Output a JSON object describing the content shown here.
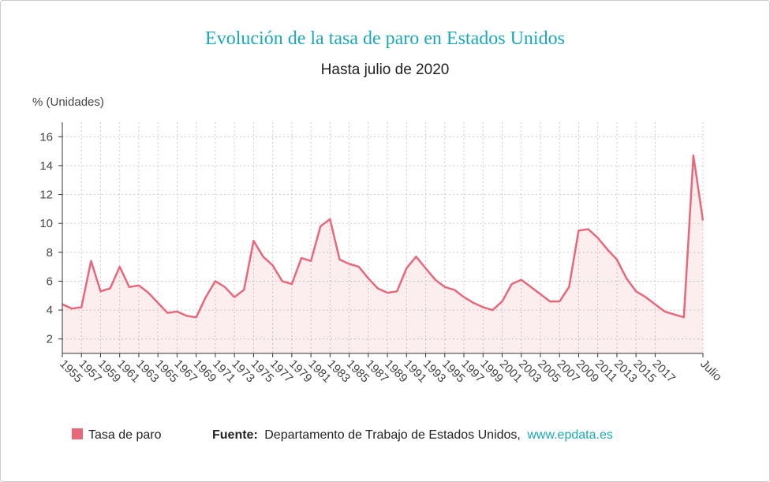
{
  "chart_data": {
    "type": "line",
    "title": "Evolución de la tasa de paro en Estados Unidos",
    "subtitle": "Hasta julio de 2020",
    "y_label": "% (Unidades)",
    "categories": [
      "1955",
      null,
      "1957",
      null,
      "1959",
      null,
      "1961",
      null,
      "1963",
      null,
      "1965",
      null,
      "1967",
      null,
      "1969",
      null,
      "1971",
      null,
      "1973",
      null,
      "1975",
      null,
      "1977",
      null,
      "1979",
      null,
      "1981",
      null,
      "1983",
      null,
      "1985",
      null,
      "1987",
      null,
      "1989",
      null,
      "1991",
      null,
      "1993",
      null,
      "1995",
      null,
      "1997",
      null,
      "1999",
      null,
      "2001",
      null,
      "2003",
      null,
      "2005",
      null,
      "2007",
      null,
      "2009",
      null,
      "2011",
      null,
      "2013",
      null,
      "2015",
      null,
      "2017",
      null,
      null,
      null,
      null,
      "Julio"
    ],
    "series": [
      {
        "name": "Tasa de paro",
        "color": "#e8687a",
        "values": [
          4.4,
          4.1,
          4.2,
          7.4,
          5.3,
          5.5,
          7.0,
          5.6,
          5.7,
          5.2,
          4.5,
          3.8,
          3.9,
          3.6,
          3.5,
          4.9,
          6.0,
          5.6,
          4.9,
          5.4,
          8.8,
          7.7,
          7.1,
          6.0,
          5.8,
          7.6,
          7.4,
          9.8,
          10.3,
          7.5,
          7.2,
          7.0,
          6.2,
          5.5,
          5.2,
          5.3,
          6.9,
          7.7,
          6.9,
          6.1,
          5.6,
          5.4,
          4.9,
          4.5,
          4.2,
          4.0,
          4.6,
          5.8,
          6.1,
          5.6,
          5.1,
          4.6,
          4.6,
          5.6,
          9.5,
          9.6,
          9.0,
          8.2,
          7.5,
          6.2,
          5.3,
          4.9,
          4.4,
          3.9,
          3.7,
          3.5,
          14.7,
          10.2
        ]
      }
    ],
    "ylim": [
      1,
      17
    ],
    "yticks": [
      2,
      4,
      6,
      8,
      10,
      12,
      14,
      16
    ],
    "grid": true,
    "legend": "bottom-left",
    "source_label": "Fuente:",
    "source": "Departamento de Trabajo de Estados Unidos,",
    "link": "www.epdata.es"
  }
}
